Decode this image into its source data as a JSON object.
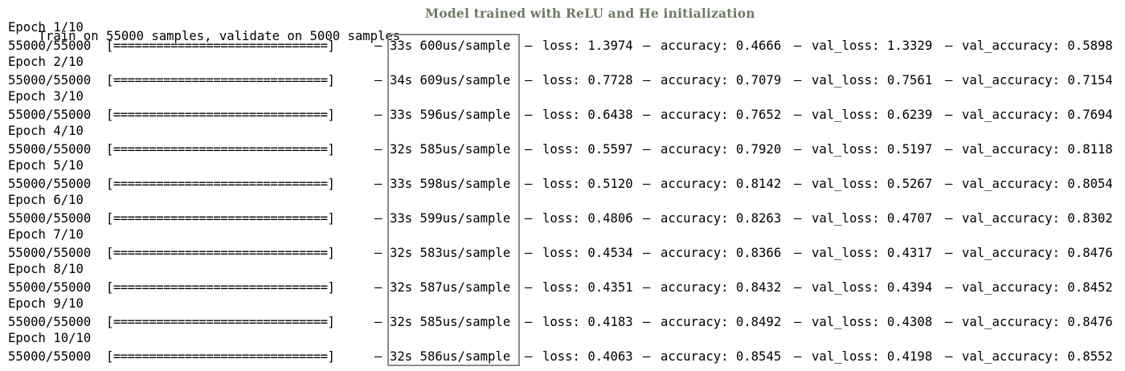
{
  "header": {
    "summary": "Train on 55000 samples, validate on 5000 samples",
    "annotation": "Model trained with ReLU and He initialization"
  },
  "colors": {
    "annotation_text": "#6e7a62",
    "highlight_border": "#8a8f86",
    "text": "#000000"
  },
  "epochs": [
    {
      "label": "Epoch 1/10",
      "count": "55000/55000",
      "bar": "[==============================]",
      "time": "33s 600us/sample",
      "loss": "loss: 1.3974",
      "accuracy": "accuracy: 0.4666",
      "val_loss": "val_loss: 1.3329",
      "val_accuracy": "val_accuracy: 0.5898"
    },
    {
      "label": "Epoch 2/10",
      "count": "55000/55000",
      "bar": "[==============================]",
      "time": "34s 609us/sample",
      "loss": "loss: 0.7728",
      "accuracy": "accuracy: 0.7079",
      "val_loss": "val_loss: 0.7561",
      "val_accuracy": "val_accuracy: 0.7154"
    },
    {
      "label": "Epoch 3/10",
      "count": "55000/55000",
      "bar": "[==============================]",
      "time": "33s 596us/sample",
      "loss": "loss: 0.6438",
      "accuracy": "accuracy: 0.7652",
      "val_loss": "val_loss: 0.6239",
      "val_accuracy": "val_accuracy: 0.7694"
    },
    {
      "label": "Epoch 4/10",
      "count": "55000/55000",
      "bar": "[==============================]",
      "time": "32s 585us/sample",
      "loss": "loss: 0.5597",
      "accuracy": "accuracy: 0.7920",
      "val_loss": "val_loss: 0.5197",
      "val_accuracy": "val_accuracy: 0.8118"
    },
    {
      "label": "Epoch 5/10",
      "count": "55000/55000",
      "bar": "[==============================]",
      "time": "33s 598us/sample",
      "loss": "loss: 0.5120",
      "accuracy": "accuracy: 0.8142",
      "val_loss": "val_loss: 0.5267",
      "val_accuracy": "val_accuracy: 0.8054"
    },
    {
      "label": "Epoch 6/10",
      "count": "55000/55000",
      "bar": "[==============================]",
      "time": "33s 599us/sample",
      "loss": "loss: 0.4806",
      "accuracy": "accuracy: 0.8263",
      "val_loss": "val_loss: 0.4707",
      "val_accuracy": "val_accuracy: 0.8302"
    },
    {
      "label": "Epoch 7/10",
      "count": "55000/55000",
      "bar": "[==============================]",
      "time": "32s 583us/sample",
      "loss": "loss: 0.4534",
      "accuracy": "accuracy: 0.8366",
      "val_loss": "val_loss: 0.4317",
      "val_accuracy": "val_accuracy: 0.8476"
    },
    {
      "label": "Epoch 8/10",
      "count": "55000/55000",
      "bar": "[==============================]",
      "time": "32s 587us/sample",
      "loss": "loss: 0.4351",
      "accuracy": "accuracy: 0.8432",
      "val_loss": "val_loss: 0.4394",
      "val_accuracy": "val_accuracy: 0.8452"
    },
    {
      "label": "Epoch 9/10",
      "count": "55000/55000",
      "bar": "[==============================]",
      "time": "32s 585us/sample",
      "loss": "loss: 0.4183",
      "accuracy": "accuracy: 0.8492",
      "val_loss": "val_loss: 0.4308",
      "val_accuracy": "val_accuracy: 0.8476"
    },
    {
      "label": "Epoch 10/10",
      "count": "55000/55000",
      "bar": "[==============================]",
      "time": "32s 586us/sample",
      "loss": "loss: 0.4063",
      "accuracy": "accuracy: 0.8545",
      "val_loss": "val_loss: 0.4198",
      "val_accuracy": "val_accuracy: 0.8552"
    }
  ],
  "separator": " – "
}
